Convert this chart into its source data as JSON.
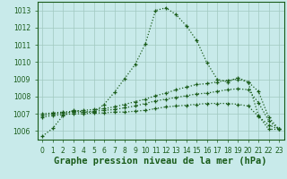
{
  "title": "Graphe pression niveau de la mer (hPa)",
  "hours": [
    0,
    1,
    2,
    3,
    4,
    5,
    6,
    7,
    8,
    9,
    10,
    11,
    12,
    13,
    14,
    15,
    16,
    17,
    18,
    19,
    20,
    21,
    22,
    23
  ],
  "line1": [
    1005.7,
    1006.15,
    1006.9,
    1007.2,
    1007.1,
    1007.1,
    1007.55,
    1008.25,
    1009.05,
    1009.85,
    1011.05,
    1013.0,
    1013.15,
    1012.75,
    1012.1,
    1011.25,
    1009.95,
    1009.0,
    1008.85,
    1009.1,
    1008.85,
    1006.9,
    1006.1,
    1006.1
  ],
  "line2": [
    1007.0,
    1007.05,
    1007.1,
    1007.15,
    1007.2,
    1007.25,
    1007.3,
    1007.4,
    1007.55,
    1007.7,
    1007.85,
    1008.05,
    1008.2,
    1008.4,
    1008.55,
    1008.7,
    1008.75,
    1008.85,
    1008.95,
    1009.0,
    1008.85,
    1008.3,
    1006.8,
    1006.1
  ],
  "line3": [
    1006.9,
    1007.0,
    1007.05,
    1007.1,
    1007.1,
    1007.15,
    1007.2,
    1007.25,
    1007.35,
    1007.45,
    1007.6,
    1007.75,
    1007.85,
    1007.95,
    1008.05,
    1008.15,
    1008.2,
    1008.3,
    1008.4,
    1008.45,
    1008.4,
    1007.65,
    1006.6,
    1006.1
  ],
  "line4": [
    1006.8,
    1006.9,
    1006.95,
    1007.0,
    1007.0,
    1007.05,
    1007.05,
    1007.1,
    1007.1,
    1007.15,
    1007.2,
    1007.3,
    1007.4,
    1007.45,
    1007.5,
    1007.55,
    1007.6,
    1007.6,
    1007.6,
    1007.55,
    1007.45,
    1006.85,
    1006.35,
    1006.1
  ],
  "line_color": "#1a5c1a",
  "bg_color": "#c8eaea",
  "grid_color": "#a0c8c0",
  "ylim_min": 1005.5,
  "ylim_max": 1013.5,
  "yticks": [
    1006,
    1007,
    1008,
    1009,
    1010,
    1011,
    1012,
    1013
  ],
  "title_fontsize": 7.5,
  "tick_fontsize": 5.5
}
